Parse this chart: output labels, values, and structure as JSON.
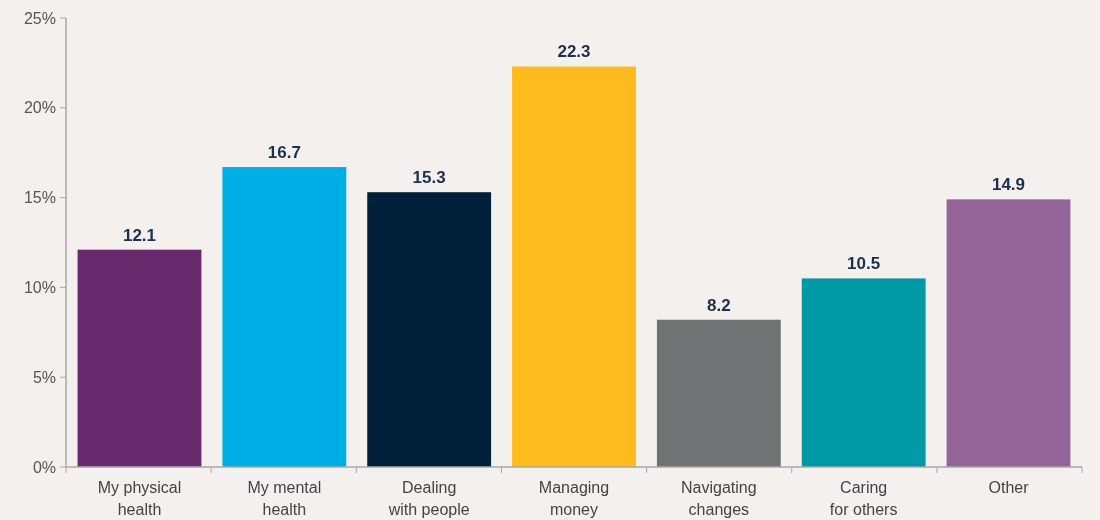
{
  "chart_data": {
    "type": "bar",
    "categories": [
      "My physical\nhealth",
      "My mental\nhealth",
      "Dealing\nwith people",
      "Managing\nmoney",
      "Navigating\nchanges",
      "Caring\nfor others",
      "Other"
    ],
    "values": [
      12.1,
      16.7,
      15.3,
      22.3,
      8.2,
      10.5,
      14.9
    ],
    "colors": [
      "#692a6d",
      "#00aee6",
      "#002039",
      "#fdbb1e",
      "#707374",
      "#0099a6",
      "#936598"
    ],
    "ylim": [
      0,
      25
    ],
    "yticks": [
      {
        "value": 0,
        "label": "0%"
      },
      {
        "value": 5,
        "label": "5%"
      },
      {
        "value": 10,
        "label": "10%"
      },
      {
        "value": 15,
        "label": "15%"
      },
      {
        "value": 20,
        "label": "20%"
      },
      {
        "value": 25,
        "label": "25%"
      }
    ],
    "data_labels": true,
    "grid": false
  }
}
